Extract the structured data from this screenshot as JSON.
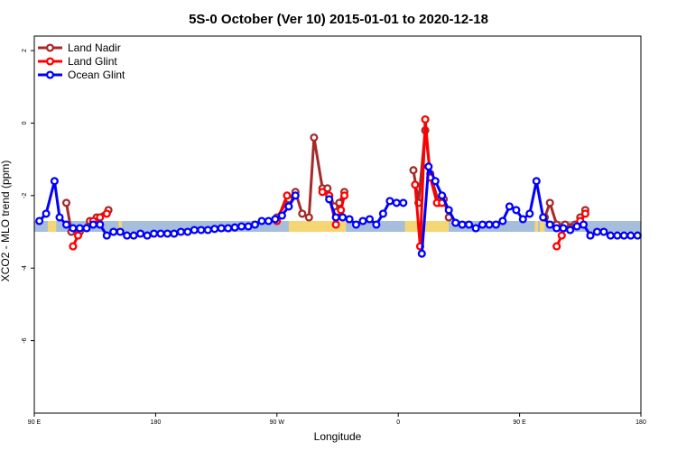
{
  "chart_data": {
    "type": "line",
    "title": "5S-0 October (Ver 10)   2015-01-01 to 2020-12-18",
    "xlabel": "Longitude",
    "ylabel": "XCO2 - MLO trend (ppm)",
    "xlim": [
      0,
      360
    ],
    "ylim": [
      -8,
      2.4
    ],
    "x_ticks": [
      {
        "x": 0,
        "label": "90 E"
      },
      {
        "x": 72,
        "label": "180"
      },
      {
        "x": 144,
        "label": "90 W"
      },
      {
        "x": 216,
        "label": "0"
      },
      {
        "x": 288,
        "label": "90 E"
      },
      {
        "x": 360,
        "label": "180"
      }
    ],
    "y_ticks": [
      {
        "y": -6,
        "label": "-6"
      },
      {
        "y": -4,
        "label": "-4"
      },
      {
        "y": -2,
        "label": "-2"
      },
      {
        "y": 0,
        "label": "0"
      },
      {
        "y": 2,
        "label": "2"
      }
    ],
    "grid": false,
    "legend": {
      "position": "top-left",
      "entries": [
        {
          "name": "Land Nadir",
          "color": "#a52a2a"
        },
        {
          "name": "Land Glint",
          "color": "#ff0000"
        },
        {
          "name": "Ocean Glint",
          "color": "#0000ff"
        }
      ]
    },
    "surface_band": {
      "y_range": [
        -3.0,
        -2.7
      ],
      "ocean_color": "#a6bddb",
      "land_color": "#f4d675",
      "land_segments": [
        [
          8,
          13
        ],
        [
          50,
          52
        ],
        [
          151,
          185
        ],
        [
          220,
          246
        ],
        [
          297,
          299
        ],
        [
          300,
          303
        ]
      ]
    },
    "series": [
      {
        "name": "Land Nadir",
        "color": "#a52a2a",
        "segments": [
          [
            [
              19,
              -2.2
            ],
            [
              22,
              -3.0
            ],
            [
              27,
              -3.0
            ],
            [
              33,
              -2.7
            ],
            [
              37,
              -2.6
            ],
            [
              44,
              -2.4
            ]
          ],
          [
            [
              144,
              -2.6
            ],
            [
              151,
              -2.1
            ],
            [
              155,
              -1.9
            ],
            [
              159,
              -2.5
            ],
            [
              163,
              -2.6
            ],
            [
              166,
              -0.4
            ],
            [
              171,
              -1.8
            ],
            [
              174,
              -1.8
            ],
            [
              178,
              -2.3
            ],
            [
              181,
              -2.2
            ],
            [
              184,
              -1.9
            ]
          ],
          [
            [
              225,
              -1.3
            ],
            [
              228,
              -2.2
            ],
            [
              232,
              -0.2
            ],
            [
              235,
              -1.4
            ],
            [
              240,
              -2.2
            ],
            [
              243,
              -2.1
            ],
            [
              246,
              -2.6
            ]
          ],
          [
            [
              303,
              -2.6
            ],
            [
              306,
              -2.2
            ],
            [
              310,
              -2.8
            ],
            [
              315,
              -2.8
            ],
            [
              321,
              -2.8
            ],
            [
              324,
              -2.6
            ],
            [
              327,
              -2.4
            ]
          ]
        ]
      },
      {
        "name": "Land Glint",
        "color": "#ff0000",
        "segments": [
          [
            [
              23,
              -3.4
            ],
            [
              26,
              -3.1
            ]
          ],
          [
            [
              35,
              -2.7
            ],
            [
              39,
              -2.6
            ],
            [
              43,
              -2.5
            ]
          ],
          [
            [
              144,
              -2.7
            ],
            [
              150,
              -2.0
            ]
          ],
          [
            [
              171,
              -1.9
            ],
            [
              175,
              -2.0
            ],
            [
              179,
              -2.8
            ],
            [
              182,
              -2.4
            ],
            [
              184,
              -2.0
            ]
          ],
          [
            [
              226,
              -1.7
            ],
            [
              229,
              -3.4
            ],
            [
              232,
              0.1
            ],
            [
              235,
              -1.5
            ],
            [
              239,
              -2.2
            ],
            [
              242,
              -2.2
            ]
          ],
          [
            [
              310,
              -3.4
            ],
            [
              313,
              -3.1
            ]
          ],
          [
            [
              324,
              -2.7
            ],
            [
              327,
              -2.5
            ]
          ]
        ]
      },
      {
        "name": "Ocean Glint",
        "color": "#0000ff",
        "segments": [
          [
            [
              3,
              -2.7
            ],
            [
              7,
              -2.5
            ],
            [
              12,
              -1.6
            ],
            [
              15,
              -2.6
            ],
            [
              19,
              -2.8
            ],
            [
              23,
              -2.9
            ],
            [
              27,
              -2.9
            ],
            [
              31,
              -2.9
            ],
            [
              35,
              -2.8
            ],
            [
              39,
              -2.8
            ],
            [
              43,
              -3.1
            ],
            [
              47,
              -3.0
            ],
            [
              51,
              -3.0
            ],
            [
              55,
              -3.1
            ],
            [
              59,
              -3.1
            ],
            [
              63,
              -3.05
            ],
            [
              67,
              -3.1
            ],
            [
              71,
              -3.05
            ],
            [
              75,
              -3.05
            ],
            [
              79,
              -3.05
            ],
            [
              83,
              -3.05
            ],
            [
              87,
              -3.0
            ],
            [
              91,
              -3.0
            ],
            [
              95,
              -2.95
            ],
            [
              99,
              -2.95
            ],
            [
              103,
              -2.95
            ],
            [
              107,
              -2.92
            ],
            [
              111,
              -2.9
            ],
            [
              115,
              -2.9
            ],
            [
              119,
              -2.88
            ],
            [
              123,
              -2.85
            ],
            [
              127,
              -2.85
            ],
            [
              131,
              -2.8
            ],
            [
              135,
              -2.7
            ],
            [
              139,
              -2.7
            ],
            [
              143,
              -2.65
            ],
            [
              147,
              -2.55
            ],
            [
              151,
              -2.3
            ],
            [
              155,
              -2.0
            ]
          ],
          [
            [
              175,
              -2.1
            ],
            [
              179,
              -2.6
            ],
            [
              183,
              -2.6
            ],
            [
              187,
              -2.65
            ],
            [
              191,
              -2.8
            ],
            [
              195,
              -2.7
            ],
            [
              199,
              -2.65
            ],
            [
              203,
              -2.8
            ],
            [
              207,
              -2.5
            ],
            [
              211,
              -2.15
            ],
            [
              215,
              -2.2
            ],
            [
              219,
              -2.2
            ]
          ],
          [
            [
              230,
              -3.6
            ],
            [
              234,
              -1.2
            ],
            [
              238,
              -1.6
            ],
            [
              242,
              -2.0
            ],
            [
              246,
              -2.4
            ],
            [
              250,
              -2.75
            ],
            [
              254,
              -2.8
            ],
            [
              258,
              -2.8
            ],
            [
              262,
              -2.9
            ],
            [
              266,
              -2.8
            ],
            [
              270,
              -2.8
            ],
            [
              274,
              -2.8
            ],
            [
              278,
              -2.7
            ],
            [
              282,
              -2.3
            ],
            [
              286,
              -2.4
            ],
            [
              290,
              -2.65
            ],
            [
              294,
              -2.5
            ],
            [
              298,
              -1.6
            ],
            [
              302,
              -2.6
            ],
            [
              306,
              -2.8
            ],
            [
              310,
              -2.9
            ],
            [
              314,
              -2.9
            ],
            [
              318,
              -2.95
            ],
            [
              322,
              -2.85
            ],
            [
              326,
              -2.8
            ],
            [
              330,
              -3.1
            ],
            [
              334,
              -3.0
            ],
            [
              338,
              -3.0
            ],
            [
              342,
              -3.1
            ],
            [
              346,
              -3.1
            ],
            [
              350,
              -3.1
            ],
            [
              354,
              -3.1
            ],
            [
              358,
              -3.1
            ]
          ]
        ]
      }
    ]
  }
}
